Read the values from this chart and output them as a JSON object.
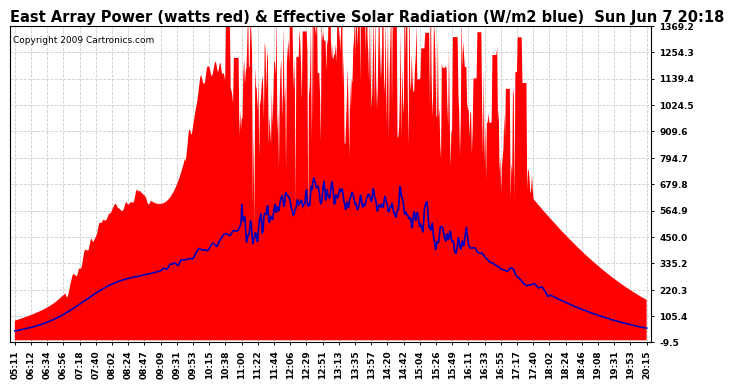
{
  "title": "East Array Power (watts red) & Effective Solar Radiation (W/m2 blue)  Sun Jun 7 20:18",
  "copyright": "Copyright 2009 Cartronics.com",
  "y_min": -9.5,
  "y_max": 1369.2,
  "yticks": [
    -9.5,
    105.4,
    220.3,
    335.2,
    450.0,
    564.9,
    679.8,
    794.7,
    909.6,
    1024.5,
    1139.4,
    1254.3,
    1369.2
  ],
  "ytick_labels": [
    "-9.5",
    "105.4",
    "220.3",
    "335.2",
    "450.0",
    "564.9",
    "679.8",
    "794.7",
    "909.6",
    "1024.5",
    "1139.4",
    "1254.3",
    "1369.2"
  ],
  "xtick_labels": [
    "05:11",
    "06:12",
    "06:34",
    "06:56",
    "07:18",
    "07:40",
    "08:02",
    "08:24",
    "08:47",
    "09:09",
    "09:31",
    "09:53",
    "10:15",
    "10:38",
    "11:00",
    "11:22",
    "11:44",
    "12:06",
    "12:29",
    "12:51",
    "13:13",
    "13:35",
    "13:57",
    "14:20",
    "14:42",
    "15:04",
    "15:26",
    "15:49",
    "16:11",
    "16:33",
    "16:55",
    "17:17",
    "17:40",
    "18:02",
    "18:24",
    "18:46",
    "19:08",
    "19:31",
    "19:53",
    "20:15"
  ],
  "background_color": "#ffffff",
  "grid_color": "#c8c8c8",
  "red_color": "#ff0000",
  "blue_color": "#0000bb",
  "title_fontsize": 10.5,
  "axis_fontsize": 6.5,
  "copyright_fontsize": 6.5,
  "n_xticks": 40
}
